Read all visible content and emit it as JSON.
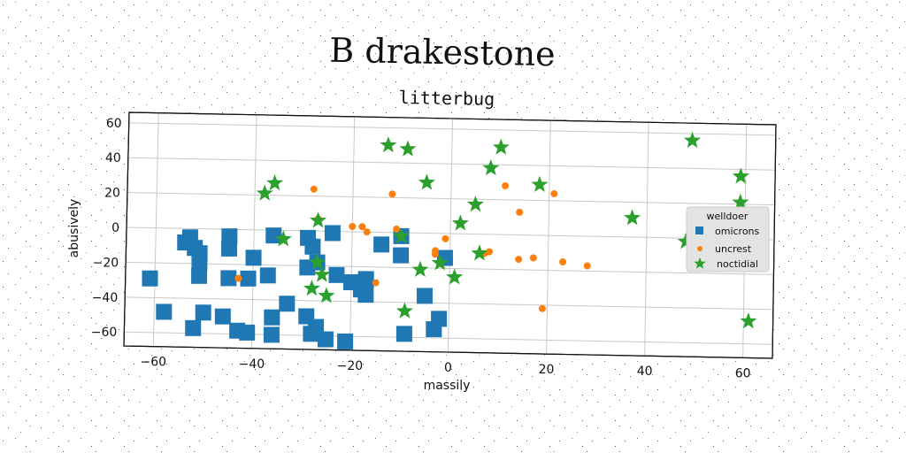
{
  "chart_data": {
    "type": "scatter",
    "suptitle": "B drakestone",
    "title": "litterbug",
    "xlabel": "massily",
    "ylabel": "abusively",
    "xlim": [
      -66,
      66
    ],
    "ylim": [
      -68,
      66
    ],
    "xticks": [
      -60,
      -40,
      -20,
      0,
      20,
      40,
      60
    ],
    "yticks": [
      -60,
      -40,
      -20,
      0,
      20,
      40,
      60
    ],
    "xtick_labels": [
      "−60",
      "−40",
      "−20",
      "0",
      "20",
      "40",
      "60"
    ],
    "ytick_labels": [
      "−60",
      "−40",
      "−20",
      "0",
      "20",
      "40",
      "60"
    ],
    "grid": true,
    "legend": {
      "title": "welldoer",
      "placement": "center-right"
    },
    "series": [
      {
        "name": "omicrons",
        "marker": "square",
        "color": "#1f77b4",
        "points": [
          [
            -61,
            -29
          ],
          [
            -58,
            -48
          ],
          [
            -53,
            -5
          ],
          [
            -54,
            -8
          ],
          [
            -52,
            -11
          ],
          [
            -51,
            -14
          ],
          [
            -51,
            -19
          ],
          [
            -51,
            -27
          ],
          [
            -52,
            -57
          ],
          [
            -50,
            -48
          ],
          [
            -46,
            -50
          ],
          [
            -45,
            -4
          ],
          [
            -45,
            -11
          ],
          [
            -45,
            -28
          ],
          [
            -41,
            -28
          ],
          [
            -40,
            -16
          ],
          [
            -41,
            -59
          ],
          [
            -43,
            -58
          ],
          [
            -36,
            -3
          ],
          [
            -37,
            -26
          ],
          [
            -36,
            -50
          ],
          [
            -36,
            -60
          ],
          [
            -33,
            -42
          ],
          [
            -29,
            -4
          ],
          [
            -28,
            -9
          ],
          [
            -29,
            -21
          ],
          [
            -27,
            -18
          ],
          [
            -27,
            -55
          ],
          [
            -29,
            -49
          ],
          [
            -28,
            -59
          ],
          [
            -25,
            -62
          ],
          [
            -21,
            -63
          ],
          [
            -24,
            -1
          ],
          [
            -23,
            -25
          ],
          [
            -20,
            -29
          ],
          [
            -17,
            -27
          ],
          [
            -14,
            -7
          ],
          [
            -18,
            -33
          ],
          [
            -17,
            -36
          ],
          [
            -10,
            -2
          ],
          [
            -10,
            -13
          ],
          [
            -9,
            -58
          ],
          [
            -5,
            -36
          ],
          [
            -3,
            -55
          ],
          [
            -2,
            -49
          ],
          [
            -1,
            -14
          ]
        ]
      },
      {
        "name": "uncrest",
        "marker": "circle",
        "color": "#ff7f0e",
        "points": [
          [
            -43,
            -28
          ],
          [
            -28,
            24
          ],
          [
            -27,
            7
          ],
          [
            -20,
            3
          ],
          [
            -18,
            3
          ],
          [
            -17,
            0
          ],
          [
            -15,
            -29
          ],
          [
            -12,
            22
          ],
          [
            -11,
            2
          ],
          [
            -3,
            -10
          ],
          [
            -3,
            -12
          ],
          [
            -1,
            -3
          ],
          [
            7,
            -11
          ],
          [
            8,
            -10
          ],
          [
            11,
            28
          ],
          [
            14,
            13
          ],
          [
            14,
            -14
          ],
          [
            17,
            -13
          ],
          [
            19,
            -42
          ],
          [
            21,
            24
          ],
          [
            23,
            -15
          ],
          [
            28,
            -17
          ]
        ]
      },
      {
        "name": "noctidial",
        "marker": "star",
        "color": "#2ca02c",
        "points": [
          [
            -38,
            21
          ],
          [
            -36,
            27
          ],
          [
            -34,
            -5
          ],
          [
            -27,
            6
          ],
          [
            -27,
            -18
          ],
          [
            -28,
            -33
          ],
          [
            -26,
            -25
          ],
          [
            -25,
            -37
          ],
          [
            -13,
            50
          ],
          [
            -10,
            -2
          ],
          [
            -9,
            48
          ],
          [
            -9,
            -45
          ],
          [
            -6,
            -21
          ],
          [
            -5,
            29
          ],
          [
            -2,
            -17
          ],
          [
            1,
            -25
          ],
          [
            2,
            6
          ],
          [
            5,
            17
          ],
          [
            6,
            -11
          ],
          [
            8,
            38
          ],
          [
            10,
            50
          ],
          [
            18,
            29
          ],
          [
            37,
            11
          ],
          [
            48,
            -2
          ],
          [
            49,
            56
          ],
          [
            59,
            36
          ],
          [
            59,
            21
          ],
          [
            61,
            -47
          ]
        ]
      }
    ]
  }
}
